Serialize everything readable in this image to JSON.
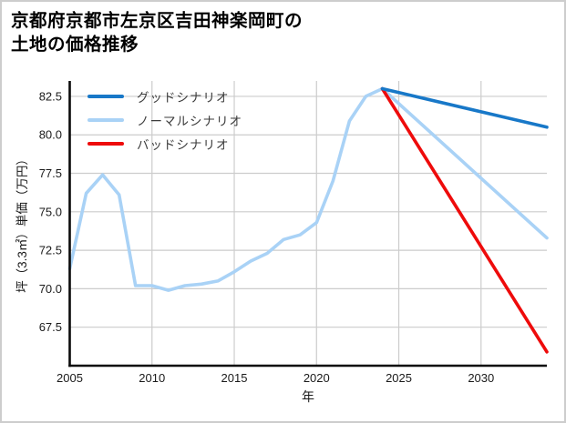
{
  "header": {
    "title_line1": "京都府京都市左京区吉田神楽岡町の",
    "title_line2": "土地の価格推移"
  },
  "chart_data": {
    "type": "line",
    "title": "京都府京都市左京区吉田神楽岡町の土地の価格推移",
    "xlabel": "年",
    "ylabel": "坪（3.3㎡）単価（万円）",
    "xlim": [
      2005,
      2034
    ],
    "ylim": [
      65,
      83.5
    ],
    "xticks": [
      2005,
      2010,
      2015,
      2020,
      2025,
      2030
    ],
    "yticks": [
      67.5,
      70.0,
      72.5,
      75.0,
      77.5,
      80.0,
      82.5
    ],
    "grid": true,
    "legend_position": "upper-left",
    "colors": {
      "good": "#1878c8",
      "normal": "#a9d2f6",
      "bad": "#ee0b0b",
      "grid": "#cccccc",
      "spine": "#0a0a0a"
    },
    "series": [
      {
        "name": "グッドシナリオ",
        "key": "good",
        "color": "#1878c8",
        "points": [
          [
            2024,
            83.0
          ],
          [
            2034,
            80.5
          ]
        ]
      },
      {
        "name": "ノーマルシナリオ",
        "key": "normal",
        "color": "#a9d2f6",
        "points": [
          [
            2005,
            71.3
          ],
          [
            2006,
            76.2
          ],
          [
            2007,
            77.4
          ],
          [
            2008,
            76.1
          ],
          [
            2009,
            70.2
          ],
          [
            2010,
            70.2
          ],
          [
            2011,
            69.9
          ],
          [
            2012,
            70.2
          ],
          [
            2013,
            70.3
          ],
          [
            2014,
            70.5
          ],
          [
            2015,
            71.1
          ],
          [
            2016,
            71.8
          ],
          [
            2017,
            72.3
          ],
          [
            2018,
            73.2
          ],
          [
            2019,
            73.5
          ],
          [
            2020,
            74.3
          ],
          [
            2021,
            77.0
          ],
          [
            2022,
            80.9
          ],
          [
            2023,
            82.5
          ],
          [
            2024,
            83.0
          ],
          [
            2034,
            73.3
          ]
        ]
      },
      {
        "name": "バッドシナリオ",
        "key": "bad",
        "color": "#ee0b0b",
        "points": [
          [
            2024,
            83.0
          ],
          [
            2034,
            65.9
          ]
        ]
      }
    ]
  }
}
